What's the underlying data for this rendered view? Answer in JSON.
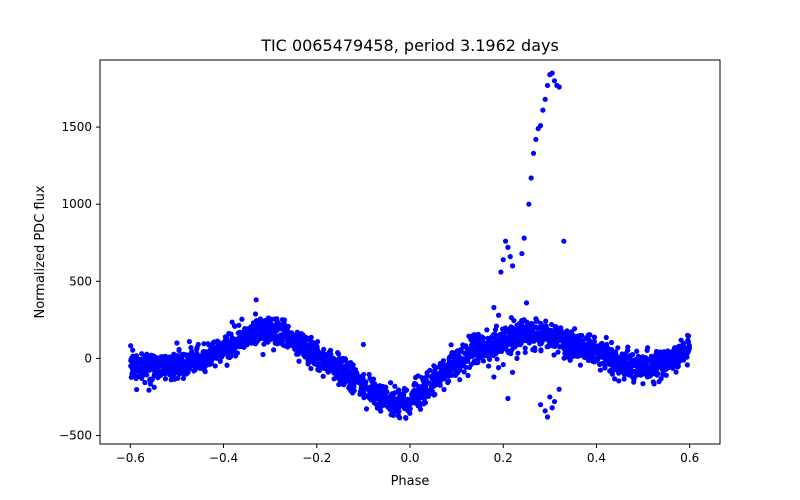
{
  "chart_data": {
    "type": "scatter",
    "title": "TIC 0065479458, period 3.1962 days",
    "xlabel": "Phase",
    "ylabel": "Normalized PDC flux",
    "xlim": [
      -0.665,
      0.665
    ],
    "ylim": [
      -555,
      1935
    ],
    "x_ticks": [
      -0.6,
      -0.4,
      -0.2,
      0.0,
      0.2,
      0.4,
      0.6
    ],
    "x_tick_labels": [
      "−0.6",
      "−0.4",
      "−0.2",
      "0.0",
      "0.2",
      "0.4",
      "0.6"
    ],
    "y_ticks": [
      -500,
      0,
      500,
      1000,
      1500
    ],
    "y_tick_labels": [
      "−500",
      "0",
      "500",
      "1000",
      "1500"
    ],
    "grid": false,
    "legend": "none",
    "marker_color": "#0000ff",
    "series": [
      {
        "trend": {
          "x": [
            -0.6,
            -0.55,
            -0.5,
            -0.45,
            -0.4,
            -0.35,
            -0.32,
            -0.28,
            -0.25,
            -0.2,
            -0.15,
            -0.1,
            -0.05,
            -0.02,
            0.0,
            0.05,
            0.1,
            0.15,
            0.2,
            0.25,
            0.3,
            0.35,
            0.4,
            0.45,
            0.5,
            0.55,
            0.6
          ],
          "y": [
            -40,
            -60,
            -50,
            -10,
            60,
            150,
            180,
            160,
            110,
            20,
            -80,
            -180,
            -270,
            -290,
            -260,
            -160,
            -20,
            60,
            120,
            170,
            140,
            90,
            40,
            -30,
            -70,
            -20,
            60
          ]
        },
        "flare": {
          "x": [
            0.19,
            0.195,
            0.2,
            0.205,
            0.21,
            0.215,
            0.22,
            0.24,
            0.245,
            0.255,
            0.26,
            0.265,
            0.27,
            0.275,
            0.28,
            0.285,
            0.29,
            0.295,
            0.3,
            0.305,
            0.31,
            0.315,
            0.32,
            0.33
          ],
          "y": [
            280,
            560,
            640,
            760,
            720,
            660,
            600,
            680,
            780,
            1000,
            1170,
            1330,
            1420,
            1490,
            1510,
            1610,
            1680,
            1770,
            1840,
            1850,
            1800,
            1770,
            1760,
            760
          ]
        },
        "dips": {
          "x": [
            0.18,
            0.19,
            0.2,
            0.21,
            0.22,
            0.28,
            0.29,
            0.295,
            0.3,
            0.305,
            0.31,
            0.32
          ],
          "y": [
            -120,
            -60,
            -40,
            -260,
            -90,
            -300,
            -340,
            -380,
            -250,
            -320,
            -280,
            -200
          ]
        },
        "outliers": {
          "x": [
            -0.1,
            -0.33,
            0.18,
            0.25,
            -0.5
          ],
          "y": [
            90,
            380,
            330,
            360,
            100
          ]
        }
      }
    ]
  }
}
